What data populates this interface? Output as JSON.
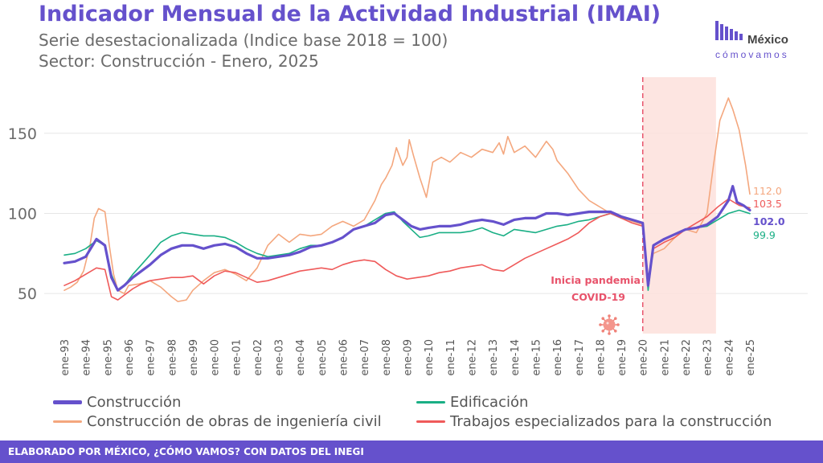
{
  "header": {
    "title": "Indicador Mensual de la Actividad Industrial (IMAI)",
    "subtitle1": "Serie desestacionalizada (Indice base 2018 = 100)",
    "subtitle2": "Sector: Construcción - Enero, 2025"
  },
  "logo": {
    "top": "México",
    "bottom": "cómovamos",
    "color": "#6551cc"
  },
  "footer": {
    "text": "ELABORADO POR MÉXICO, ¿CÓMO VAMOS? CON DATOS DEL INEGI"
  },
  "annotation": {
    "line1": "Inicia pandemia",
    "line2": "COVID-19",
    "color": "#e8536b",
    "event_x": 2020.0,
    "shade_from": 2020.0,
    "shade_to": 2023.42,
    "virus_icon": "virus-icon"
  },
  "chart_data": {
    "type": "line",
    "xlim": [
      1993,
      2025
    ],
    "ylim": [
      25,
      185
    ],
    "yticks": [
      50,
      100,
      150
    ],
    "xticklabels": [
      "ene-93",
      "ene-94",
      "ene-95",
      "ene-96",
      "ene-97",
      "ene-98",
      "ene-99",
      "ene-00",
      "ene-01",
      "ene-02",
      "ene-03",
      "ene-04",
      "ene-05",
      "ene-06",
      "ene-07",
      "ene-08",
      "ene-09",
      "ene-10",
      "ene-11",
      "ene-12",
      "ene-13",
      "ene-14",
      "ene-15",
      "ene-16",
      "ene-17",
      "ene-18",
      "ene-19",
      "ene-20",
      "ene-21",
      "ene-22",
      "ene-23",
      "ene-24",
      "ene-25"
    ],
    "legend": "bottom",
    "grid": true,
    "series": [
      {
        "name": "Construcción de obras de ingeniería civil",
        "color": "#f4a77e",
        "width": 1.6,
        "end_label": "112.0",
        "points": [
          [
            1993.0,
            52
          ],
          [
            1993.3,
            54
          ],
          [
            1993.6,
            57
          ],
          [
            1993.9,
            64
          ],
          [
            1994.2,
            80
          ],
          [
            1994.4,
            97
          ],
          [
            1994.6,
            103
          ],
          [
            1994.9,
            101
          ],
          [
            1995.1,
            80
          ],
          [
            1995.3,
            62
          ],
          [
            1995.5,
            52
          ],
          [
            1995.8,
            50
          ],
          [
            1996.0,
            55
          ],
          [
            1996.5,
            56
          ],
          [
            1997.0,
            58
          ],
          [
            1997.5,
            54
          ],
          [
            1998.0,
            48
          ],
          [
            1998.3,
            45
          ],
          [
            1998.7,
            46
          ],
          [
            1999.0,
            52
          ],
          [
            1999.5,
            58
          ],
          [
            2000.0,
            63
          ],
          [
            2000.5,
            65
          ],
          [
            2001.0,
            62
          ],
          [
            2001.5,
            58
          ],
          [
            2002.0,
            66
          ],
          [
            2002.5,
            80
          ],
          [
            2003.0,
            87
          ],
          [
            2003.5,
            82
          ],
          [
            2004.0,
            87
          ],
          [
            2004.5,
            86
          ],
          [
            2005.0,
            87
          ],
          [
            2005.5,
            92
          ],
          [
            2006.0,
            95
          ],
          [
            2006.5,
            92
          ],
          [
            2007.0,
            96
          ],
          [
            2007.5,
            108
          ],
          [
            2007.8,
            118
          ],
          [
            2008.0,
            122
          ],
          [
            2008.3,
            130
          ],
          [
            2008.5,
            141
          ],
          [
            2008.8,
            130
          ],
          [
            2009.0,
            135
          ],
          [
            2009.1,
            146
          ],
          [
            2009.3,
            136
          ],
          [
            2009.6,
            122
          ],
          [
            2009.9,
            110
          ],
          [
            2010.2,
            132
          ],
          [
            2010.6,
            135
          ],
          [
            2011.0,
            132
          ],
          [
            2011.5,
            138
          ],
          [
            2012.0,
            135
          ],
          [
            2012.5,
            140
          ],
          [
            2013.0,
            138
          ],
          [
            2013.3,
            144
          ],
          [
            2013.5,
            137
          ],
          [
            2013.7,
            148
          ],
          [
            2014.0,
            138
          ],
          [
            2014.5,
            142
          ],
          [
            2015.0,
            135
          ],
          [
            2015.5,
            145
          ],
          [
            2015.8,
            140
          ],
          [
            2016.0,
            133
          ],
          [
            2016.5,
            125
          ],
          [
            2017.0,
            115
          ],
          [
            2017.5,
            108
          ],
          [
            2018.0,
            104
          ],
          [
            2018.5,
            100
          ],
          [
            2019.0,
            98
          ],
          [
            2019.5,
            95
          ],
          [
            2020.0,
            93
          ],
          [
            2020.25,
            60
          ],
          [
            2020.5,
            75
          ],
          [
            2021.0,
            78
          ],
          [
            2021.5,
            85
          ],
          [
            2022.0,
            90
          ],
          [
            2022.5,
            88
          ],
          [
            2023.0,
            100
          ],
          [
            2023.3,
            130
          ],
          [
            2023.6,
            158
          ],
          [
            2023.8,
            165
          ],
          [
            2024.0,
            172
          ],
          [
            2024.2,
            165
          ],
          [
            2024.5,
            152
          ],
          [
            2024.8,
            130
          ],
          [
            2025.0,
            112
          ]
        ]
      },
      {
        "name": "Edificación",
        "color": "#1aaf85",
        "width": 1.6,
        "end_label": "99.9",
        "points": [
          [
            1993.0,
            74
          ],
          [
            1993.5,
            75
          ],
          [
            1994.0,
            78
          ],
          [
            1994.5,
            83
          ],
          [
            1994.9,
            80
          ],
          [
            1995.2,
            62
          ],
          [
            1995.5,
            52
          ],
          [
            1995.8,
            55
          ],
          [
            1996.2,
            62
          ],
          [
            1996.6,
            68
          ],
          [
            1997.0,
            74
          ],
          [
            1997.5,
            82
          ],
          [
            1998.0,
            86
          ],
          [
            1998.5,
            88
          ],
          [
            1999.0,
            87
          ],
          [
            1999.5,
            86
          ],
          [
            2000.0,
            86
          ],
          [
            2000.5,
            85
          ],
          [
            2001.0,
            82
          ],
          [
            2001.5,
            78
          ],
          [
            2002.0,
            75
          ],
          [
            2002.5,
            73
          ],
          [
            2003.0,
            74
          ],
          [
            2003.5,
            75
          ],
          [
            2004.0,
            78
          ],
          [
            2004.5,
            80
          ],
          [
            2005.0,
            80
          ],
          [
            2005.5,
            82
          ],
          [
            2006.0,
            85
          ],
          [
            2006.5,
            90
          ],
          [
            2007.0,
            92
          ],
          [
            2007.5,
            96
          ],
          [
            2008.0,
            100
          ],
          [
            2008.4,
            101
          ],
          [
            2008.8,
            95
          ],
          [
            2009.2,
            90
          ],
          [
            2009.6,
            85
          ],
          [
            2010.0,
            86
          ],
          [
            2010.5,
            88
          ],
          [
            2011.0,
            88
          ],
          [
            2011.5,
            88
          ],
          [
            2012.0,
            89
          ],
          [
            2012.5,
            91
          ],
          [
            2013.0,
            88
          ],
          [
            2013.5,
            86
          ],
          [
            2014.0,
            90
          ],
          [
            2014.5,
            89
          ],
          [
            2015.0,
            88
          ],
          [
            2015.5,
            90
          ],
          [
            2016.0,
            92
          ],
          [
            2016.5,
            93
          ],
          [
            2017.0,
            95
          ],
          [
            2017.5,
            96
          ],
          [
            2018.0,
            98
          ],
          [
            2018.5,
            100
          ],
          [
            2019.0,
            97
          ],
          [
            2019.5,
            96
          ],
          [
            2020.0,
            94
          ],
          [
            2020.25,
            52
          ],
          [
            2020.5,
            80
          ],
          [
            2021.0,
            84
          ],
          [
            2021.5,
            87
          ],
          [
            2022.0,
            90
          ],
          [
            2022.5,
            91
          ],
          [
            2023.0,
            92
          ],
          [
            2023.5,
            96
          ],
          [
            2024.0,
            100
          ],
          [
            2024.5,
            102
          ],
          [
            2025.0,
            99.9
          ]
        ]
      },
      {
        "name": "Trabajos especializados para la construcción",
        "color": "#ef5a5a",
        "width": 1.6,
        "end_label": "103.5",
        "points": [
          [
            1993.0,
            55
          ],
          [
            1993.5,
            58
          ],
          [
            1994.0,
            62
          ],
          [
            1994.5,
            66
          ],
          [
            1994.9,
            65
          ],
          [
            1995.2,
            48
          ],
          [
            1995.5,
            46
          ],
          [
            1995.8,
            49
          ],
          [
            1996.2,
            53
          ],
          [
            1996.6,
            56
          ],
          [
            1997.0,
            58
          ],
          [
            1997.5,
            59
          ],
          [
            1998.0,
            60
          ],
          [
            1998.5,
            60
          ],
          [
            1999.0,
            61
          ],
          [
            1999.5,
            56
          ],
          [
            2000.0,
            61
          ],
          [
            2000.5,
            64
          ],
          [
            2001.0,
            63
          ],
          [
            2001.5,
            60
          ],
          [
            2002.0,
            57
          ],
          [
            2002.5,
            58
          ],
          [
            2003.0,
            60
          ],
          [
            2003.5,
            62
          ],
          [
            2004.0,
            64
          ],
          [
            2004.5,
            65
          ],
          [
            2005.0,
            66
          ],
          [
            2005.5,
            65
          ],
          [
            2006.0,
            68
          ],
          [
            2006.5,
            70
          ],
          [
            2007.0,
            71
          ],
          [
            2007.5,
            70
          ],
          [
            2008.0,
            65
          ],
          [
            2008.5,
            61
          ],
          [
            2009.0,
            59
          ],
          [
            2009.5,
            60
          ],
          [
            2010.0,
            61
          ],
          [
            2010.5,
            63
          ],
          [
            2011.0,
            64
          ],
          [
            2011.5,
            66
          ],
          [
            2012.0,
            67
          ],
          [
            2012.5,
            68
          ],
          [
            2013.0,
            65
          ],
          [
            2013.5,
            64
          ],
          [
            2014.0,
            68
          ],
          [
            2014.5,
            72
          ],
          [
            2015.0,
            75
          ],
          [
            2015.5,
            78
          ],
          [
            2016.0,
            81
          ],
          [
            2016.5,
            84
          ],
          [
            2017.0,
            88
          ],
          [
            2017.5,
            94
          ],
          [
            2018.0,
            98
          ],
          [
            2018.5,
            100
          ],
          [
            2019.0,
            97
          ],
          [
            2019.5,
            94
          ],
          [
            2020.0,
            92
          ],
          [
            2020.25,
            58
          ],
          [
            2020.5,
            78
          ],
          [
            2021.0,
            82
          ],
          [
            2021.5,
            85
          ],
          [
            2022.0,
            90
          ],
          [
            2022.5,
            94
          ],
          [
            2023.0,
            98
          ],
          [
            2023.5,
            104
          ],
          [
            2024.0,
            109
          ],
          [
            2024.5,
            105
          ],
          [
            2025.0,
            103.5
          ]
        ]
      },
      {
        "name": "Construcción",
        "color": "#6551cc",
        "width": 3.2,
        "end_label": "102.0",
        "points": [
          [
            1993.0,
            69
          ],
          [
            1993.5,
            70
          ],
          [
            1994.0,
            73
          ],
          [
            1994.5,
            84
          ],
          [
            1994.9,
            80
          ],
          [
            1995.2,
            60
          ],
          [
            1995.5,
            52
          ],
          [
            1995.8,
            55
          ],
          [
            1996.2,
            60
          ],
          [
            1996.6,
            64
          ],
          [
            1997.0,
            68
          ],
          [
            1997.5,
            74
          ],
          [
            1998.0,
            78
          ],
          [
            1998.5,
            80
          ],
          [
            1999.0,
            80
          ],
          [
            1999.5,
            78
          ],
          [
            2000.0,
            80
          ],
          [
            2000.5,
            81
          ],
          [
            2001.0,
            79
          ],
          [
            2001.5,
            75
          ],
          [
            2002.0,
            72
          ],
          [
            2002.5,
            72
          ],
          [
            2003.0,
            73
          ],
          [
            2003.5,
            74
          ],
          [
            2004.0,
            76
          ],
          [
            2004.5,
            79
          ],
          [
            2005.0,
            80
          ],
          [
            2005.5,
            82
          ],
          [
            2006.0,
            85
          ],
          [
            2006.5,
            90
          ],
          [
            2007.0,
            92
          ],
          [
            2007.5,
            94
          ],
          [
            2008.0,
            99
          ],
          [
            2008.4,
            100
          ],
          [
            2008.8,
            96
          ],
          [
            2009.2,
            92
          ],
          [
            2009.6,
            90
          ],
          [
            2010.0,
            91
          ],
          [
            2010.5,
            92
          ],
          [
            2011.0,
            92
          ],
          [
            2011.5,
            93
          ],
          [
            2012.0,
            95
          ],
          [
            2012.5,
            96
          ],
          [
            2013.0,
            95
          ],
          [
            2013.5,
            93
          ],
          [
            2014.0,
            96
          ],
          [
            2014.5,
            97
          ],
          [
            2015.0,
            97
          ],
          [
            2015.5,
            100
          ],
          [
            2016.0,
            100
          ],
          [
            2016.5,
            99
          ],
          [
            2017.0,
            100
          ],
          [
            2017.5,
            101
          ],
          [
            2018.0,
            101
          ],
          [
            2018.5,
            101
          ],
          [
            2019.0,
            98
          ],
          [
            2019.5,
            96
          ],
          [
            2020.0,
            94
          ],
          [
            2020.25,
            55
          ],
          [
            2020.5,
            80
          ],
          [
            2021.0,
            84
          ],
          [
            2021.5,
            87
          ],
          [
            2022.0,
            90
          ],
          [
            2022.5,
            91
          ],
          [
            2023.0,
            93
          ],
          [
            2023.5,
            98
          ],
          [
            2024.0,
            108
          ],
          [
            2024.2,
            117
          ],
          [
            2024.4,
            107
          ],
          [
            2024.7,
            105
          ],
          [
            2025.0,
            102
          ]
        ]
      }
    ]
  }
}
